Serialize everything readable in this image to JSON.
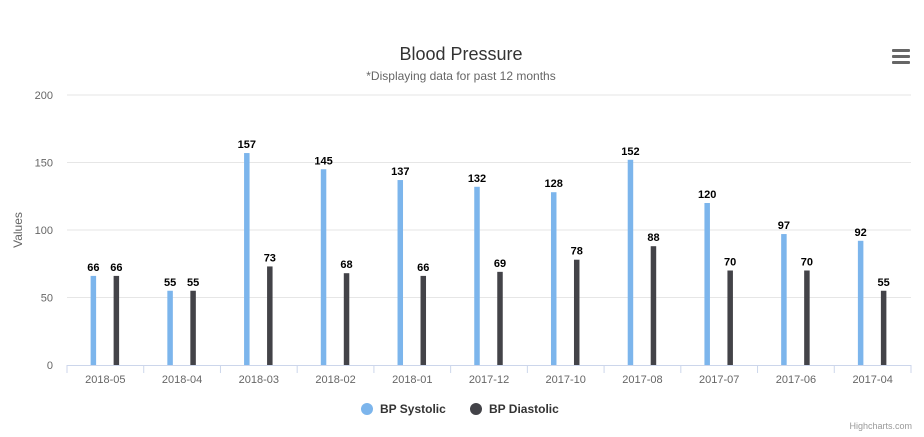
{
  "chart_data": {
    "type": "bar",
    "title": "Blood Pressure",
    "subtitle": "*Displaying data for past 12 months",
    "xlabel": "",
    "ylabel": "Values",
    "ylim": [
      0,
      200
    ],
    "yticks": [
      0,
      50,
      100,
      150,
      200
    ],
    "grid": true,
    "legend_position": "bottom-center",
    "categories": [
      "2018-05",
      "2018-04",
      "2018-03",
      "2018-02",
      "2018-01",
      "2017-12",
      "2017-10",
      "2017-08",
      "2017-07",
      "2017-06",
      "2017-04"
    ],
    "series": [
      {
        "name": "BP Systolic",
        "color": "#7cb5ec",
        "values": [
          66,
          55,
          157,
          145,
          137,
          132,
          128,
          152,
          120,
          97,
          92
        ]
      },
      {
        "name": "BP Diastolic",
        "color": "#434348",
        "values": [
          66,
          55,
          73,
          68,
          66,
          69,
          78,
          88,
          70,
          70,
          55
        ]
      }
    ]
  },
  "menu": {
    "icon": "hamburger-menu-icon"
  },
  "credits": "Highcharts.com"
}
